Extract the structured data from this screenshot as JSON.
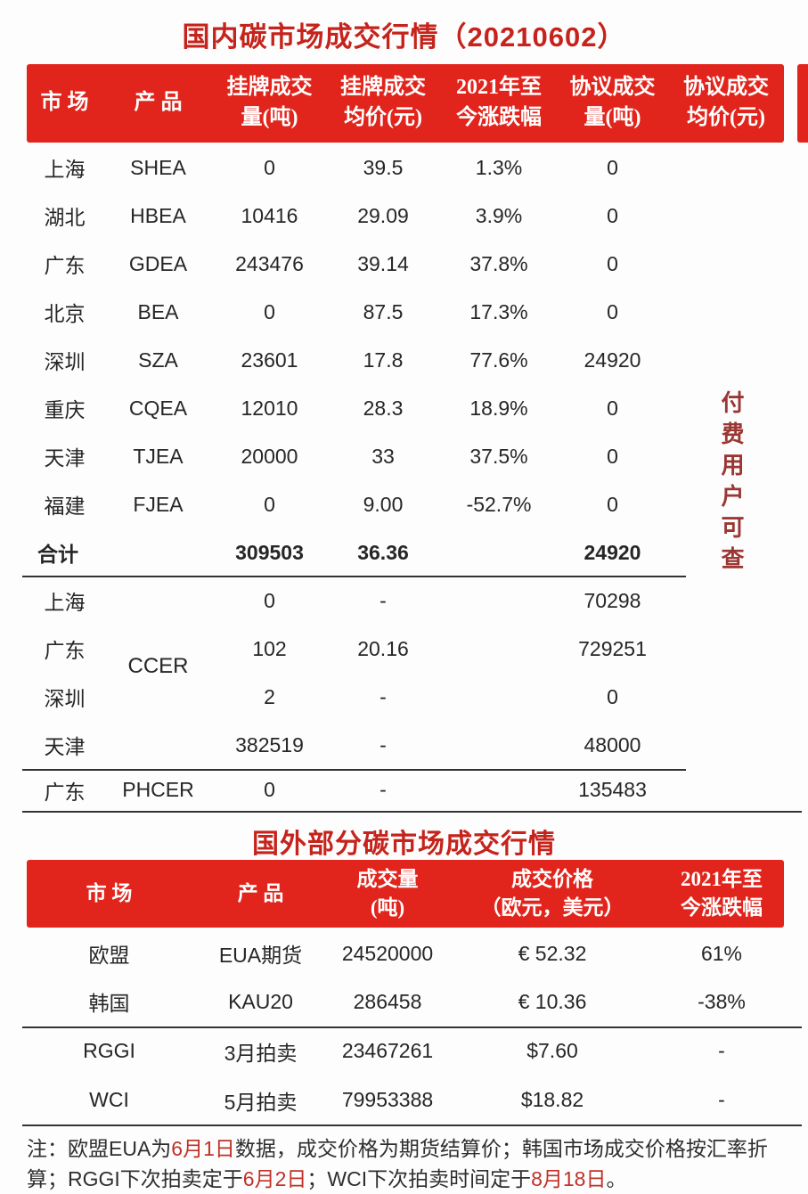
{
  "colors": {
    "header_red": "#e1251c",
    "title_red": "#c5231b",
    "watermark_red": "#9b3733",
    "note_date_red": "#bf3127",
    "text": "#262626"
  },
  "table1": {
    "title": "国内碳市场成交行情（20210602）",
    "headers": [
      "市 场",
      "产 品",
      "挂牌成交\n量(吨)",
      "挂牌成交\n均价(元)",
      "2021年至\n今涨跌幅",
      "协议成交\n量(吨)",
      "协议成交\n均价(元)"
    ],
    "rows": [
      {
        "market": "上海",
        "product": "SHEA",
        "volume": "0",
        "price": "39.5",
        "change": "1.3%",
        "agr_volume": "0",
        "agr_price": ""
      },
      {
        "market": "湖北",
        "product": "HBEA",
        "volume": "10416",
        "price": "29.09",
        "change": "3.9%",
        "agr_volume": "0",
        "agr_price": ""
      },
      {
        "market": "广东",
        "product": "GDEA",
        "volume": "243476",
        "price": "39.14",
        "change": "37.8%",
        "agr_volume": "0",
        "agr_price": ""
      },
      {
        "market": "北京",
        "product": "BEA",
        "volume": "0",
        "price": "87.5",
        "change": "17.3%",
        "agr_volume": "0",
        "agr_price": ""
      },
      {
        "market": "深圳",
        "product": "SZA",
        "volume": "23601",
        "price": "17.8",
        "change": "77.6%",
        "agr_volume": "24920",
        "agr_price": ""
      },
      {
        "market": "重庆",
        "product": "CQEA",
        "volume": "12010",
        "price": "28.3",
        "change": "18.9%",
        "agr_volume": "0",
        "agr_price": ""
      },
      {
        "market": "天津",
        "product": "TJEA",
        "volume": "20000",
        "price": "33",
        "change": "37.5%",
        "agr_volume": "0",
        "agr_price": ""
      },
      {
        "market": "福建",
        "product": "FJEA",
        "volume": "0",
        "price": "9.00",
        "change": "-52.7%",
        "agr_volume": "0",
        "agr_price": ""
      }
    ],
    "total": {
      "label": "合计",
      "product": "",
      "volume": "309503",
      "price": "36.36",
      "change": "",
      "agr_volume": "24920",
      "agr_price": ""
    },
    "ccer": {
      "product": "CCER",
      "rows": [
        {
          "market": "上海",
          "volume": "0",
          "price": "-",
          "change": "",
          "agr_volume": "70298",
          "agr_price": ""
        },
        {
          "market": "广东",
          "volume": "102",
          "price": "20.16",
          "change": "",
          "agr_volume": "729251",
          "agr_price": ""
        },
        {
          "market": "深圳",
          "volume": "2",
          "price": "-",
          "change": "",
          "agr_volume": "0",
          "agr_price": ""
        },
        {
          "market": "天津",
          "volume": "382519",
          "price": "-",
          "change": "",
          "agr_volume": "48000",
          "agr_price": ""
        }
      ]
    },
    "phcer": {
      "market": "广东",
      "product": "PHCER",
      "volume": "0",
      "price": "-",
      "change": "",
      "agr_volume": "135483",
      "agr_price": ""
    },
    "watermark": "付费用户可查"
  },
  "table2": {
    "title": "国外部分碳市场成交行情",
    "headers": [
      "市 场",
      "产 品",
      "成交量\n(吨)",
      "成交价格\n（欧元，美元）",
      "2021年至\n今涨跌幅"
    ],
    "rows": [
      {
        "market": "欧盟",
        "product": "EUA期货",
        "volume": "24520000",
        "price": "€ 52.32",
        "change": "61%"
      },
      {
        "market": "韩国",
        "product": "KAU20",
        "volume": "286458",
        "price": "€ 10.36",
        "change": "-38%"
      },
      {
        "market": "RGGI",
        "product": "3月拍卖",
        "volume": "23467261",
        "price": "$7.60",
        "change": "-"
      },
      {
        "market": "WCI",
        "product": "5月拍卖",
        "volume": "79953388",
        "price": "$18.82",
        "change": "-"
      }
    ]
  },
  "note": {
    "segments": [
      {
        "text": "注：欧盟EUA为"
      },
      {
        "text": "6月1日"
      },
      {
        "text": "数据，成交价格为期货结算价；韩国市场成交价格按汇率折算；RGGI下次拍卖定于"
      },
      {
        "text": "6月2日"
      },
      {
        "text": "；WCI下次拍卖时间定于"
      },
      {
        "text": "8月18日"
      },
      {
        "text": "。"
      }
    ]
  }
}
